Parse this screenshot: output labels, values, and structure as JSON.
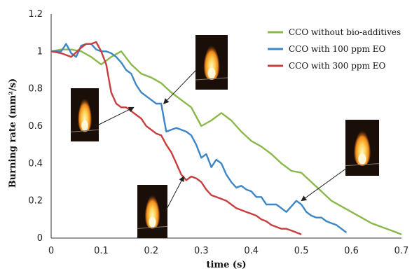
{
  "chart_data": {
    "type": "line",
    "xlabel": "time (s)",
    "ylabel": "Burning rate (mm²/s)",
    "xlim": [
      0,
      0.7
    ],
    "ylim": [
      0,
      1.2
    ],
    "x_ticks": [
      "0",
      "0.1",
      "0.2",
      "0.3",
      "0.4",
      "0.5",
      "0.6",
      "0.7"
    ],
    "y_ticks": [
      "0",
      "0.2",
      "0.4",
      "0.6",
      "0.8",
      "1",
      "1.2"
    ],
    "grid": false,
    "legend_position": "top-right",
    "series": [
      {
        "name": "CCO without bio-additives",
        "color": "#8ab84a",
        "x": [
          0,
          0.02,
          0.04,
          0.06,
          0.08,
          0.1,
          0.12,
          0.14,
          0.16,
          0.18,
          0.2,
          0.22,
          0.24,
          0.26,
          0.28,
          0.3,
          0.32,
          0.34,
          0.36,
          0.38,
          0.4,
          0.42,
          0.44,
          0.46,
          0.48,
          0.5,
          0.52,
          0.54,
          0.56,
          0.58,
          0.6,
          0.62,
          0.64,
          0.66,
          0.68,
          0.7
        ],
        "y": [
          1.0,
          1.01,
          1.01,
          1.0,
          0.97,
          0.93,
          0.97,
          1.0,
          0.93,
          0.88,
          0.86,
          0.83,
          0.78,
          0.74,
          0.7,
          0.6,
          0.63,
          0.67,
          0.63,
          0.57,
          0.52,
          0.49,
          0.45,
          0.4,
          0.36,
          0.35,
          0.3,
          0.25,
          0.2,
          0.17,
          0.14,
          0.11,
          0.08,
          0.06,
          0.04,
          0.02
        ]
      },
      {
        "name": "CCO with 100 ppm EO",
        "color": "#3d86c6",
        "x": [
          0,
          0.01,
          0.02,
          0.03,
          0.04,
          0.05,
          0.06,
          0.07,
          0.08,
          0.09,
          0.1,
          0.11,
          0.12,
          0.13,
          0.14,
          0.15,
          0.16,
          0.17,
          0.18,
          0.19,
          0.2,
          0.21,
          0.22,
          0.23,
          0.24,
          0.25,
          0.26,
          0.27,
          0.28,
          0.29,
          0.3,
          0.31,
          0.32,
          0.33,
          0.34,
          0.35,
          0.36,
          0.37,
          0.38,
          0.39,
          0.4,
          0.41,
          0.42,
          0.43,
          0.44,
          0.45,
          0.46,
          0.47,
          0.48,
          0.49,
          0.5,
          0.51,
          0.52,
          0.53,
          0.54,
          0.55,
          0.56,
          0.57,
          0.58,
          0.59
        ],
        "y": [
          1.0,
          1.0,
          1.0,
          1.04,
          0.99,
          0.97,
          1.03,
          1.04,
          1.04,
          1.01,
          1.0,
          1.0,
          0.99,
          0.97,
          0.94,
          0.9,
          0.88,
          0.82,
          0.78,
          0.76,
          0.74,
          0.72,
          0.72,
          0.57,
          0.58,
          0.59,
          0.58,
          0.57,
          0.55,
          0.5,
          0.43,
          0.45,
          0.38,
          0.42,
          0.4,
          0.34,
          0.3,
          0.27,
          0.28,
          0.26,
          0.25,
          0.22,
          0.22,
          0.18,
          0.18,
          0.18,
          0.16,
          0.14,
          0.17,
          0.2,
          0.18,
          0.14,
          0.12,
          0.11,
          0.11,
          0.09,
          0.08,
          0.07,
          0.05,
          0.03
        ]
      },
      {
        "name": "CCO with 300 ppm EO",
        "color": "#c83e3e",
        "x": [
          0,
          0.02,
          0.04,
          0.06,
          0.07,
          0.08,
          0.09,
          0.1,
          0.11,
          0.12,
          0.13,
          0.14,
          0.15,
          0.16,
          0.17,
          0.18,
          0.19,
          0.2,
          0.21,
          0.22,
          0.23,
          0.24,
          0.25,
          0.26,
          0.27,
          0.28,
          0.29,
          0.3,
          0.31,
          0.32,
          0.33,
          0.34,
          0.35,
          0.36,
          0.37,
          0.38,
          0.39,
          0.4,
          0.41,
          0.42,
          0.43,
          0.44,
          0.45,
          0.46,
          0.47,
          0.48,
          0.49,
          0.5
        ],
        "y": [
          1.0,
          0.99,
          0.97,
          1.02,
          1.04,
          1.04,
          1.05,
          1.0,
          0.93,
          0.78,
          0.72,
          0.7,
          0.7,
          0.68,
          0.66,
          0.64,
          0.6,
          0.58,
          0.56,
          0.55,
          0.5,
          0.46,
          0.4,
          0.34,
          0.31,
          0.33,
          0.32,
          0.3,
          0.26,
          0.23,
          0.22,
          0.21,
          0.2,
          0.18,
          0.16,
          0.15,
          0.14,
          0.13,
          0.12,
          0.1,
          0.09,
          0.07,
          0.06,
          0.05,
          0.05,
          0.04,
          0.03,
          0.02
        ]
      }
    ],
    "inset_photos": [
      {
        "name": "flame-photo-1",
        "points_to": {
          "x": 0.165,
          "y": 0.7
        }
      },
      {
        "name": "flame-photo-2",
        "points_to": {
          "x": 0.225,
          "y": 0.72
        }
      },
      {
        "name": "flame-photo-3",
        "points_to": {
          "x": 0.265,
          "y": 0.33
        }
      },
      {
        "name": "flame-photo-4",
        "points_to": {
          "x": 0.5,
          "y": 0.2
        }
      }
    ]
  }
}
